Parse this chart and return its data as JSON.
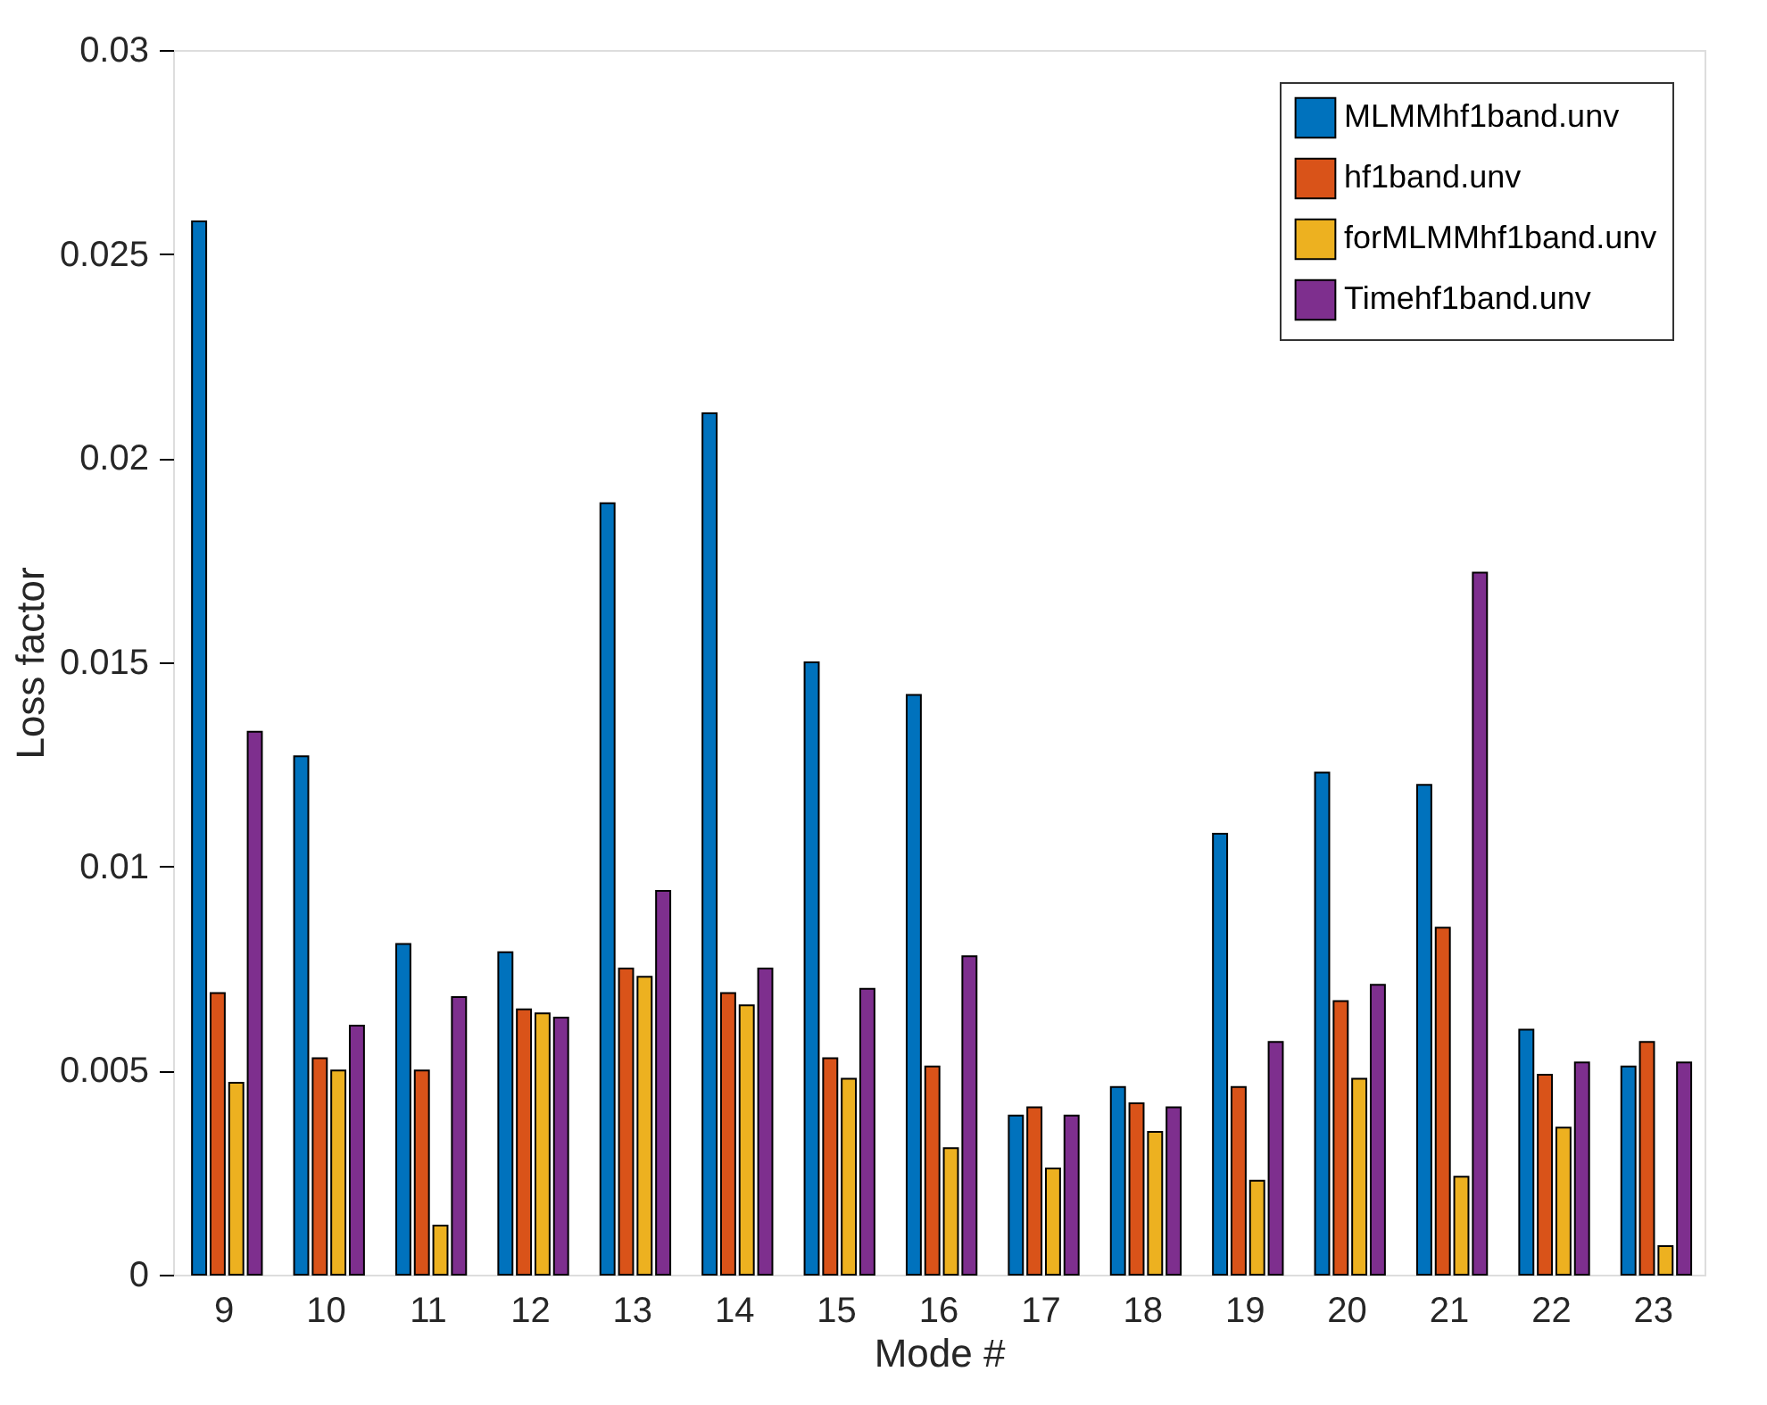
{
  "chart_data": {
    "type": "bar",
    "xlabel": "Mode #",
    "ylabel": "Loss factor",
    "categories": [
      "9",
      "10",
      "11",
      "12",
      "13",
      "14",
      "15",
      "16",
      "17",
      "18",
      "19",
      "20",
      "21",
      "22",
      "23"
    ],
    "series": [
      {
        "name": "MLMMhf1band.unv",
        "color": "#0072bd",
        "values": [
          0.0258,
          0.0127,
          0.0081,
          0.0079,
          0.0189,
          0.0211,
          0.015,
          0.0142,
          0.0039,
          0.0046,
          0.0108,
          0.0123,
          0.012,
          0.006,
          0.0051
        ]
      },
      {
        "name": "hf1band.unv",
        "color": "#d95319",
        "values": [
          0.0069,
          0.0053,
          0.005,
          0.0065,
          0.0075,
          0.0069,
          0.0053,
          0.0051,
          0.0041,
          0.0042,
          0.0046,
          0.0067,
          0.0085,
          0.0049,
          0.0057
        ]
      },
      {
        "name": "forMLMMhf1band.unv",
        "color": "#edb120",
        "values": [
          0.0047,
          0.005,
          0.0012,
          0.0064,
          0.0073,
          0.0066,
          0.0048,
          0.0031,
          0.0026,
          0.0035,
          0.0023,
          0.0048,
          0.0024,
          0.0036,
          0.0007
        ]
      },
      {
        "name": "Timehf1band.unv",
        "color": "#7e2f8e",
        "values": [
          0.0133,
          0.0061,
          0.0068,
          0.0063,
          0.0094,
          0.0075,
          0.007,
          0.0078,
          0.0039,
          0.0041,
          0.0057,
          0.0071,
          0.0172,
          0.0052,
          0.0052
        ]
      }
    ],
    "ylim": [
      0,
      0.03
    ],
    "yticks": [
      0,
      0.005,
      0.01,
      0.015,
      0.02,
      0.025,
      0.03
    ],
    "grid": false,
    "legend": "top right"
  }
}
